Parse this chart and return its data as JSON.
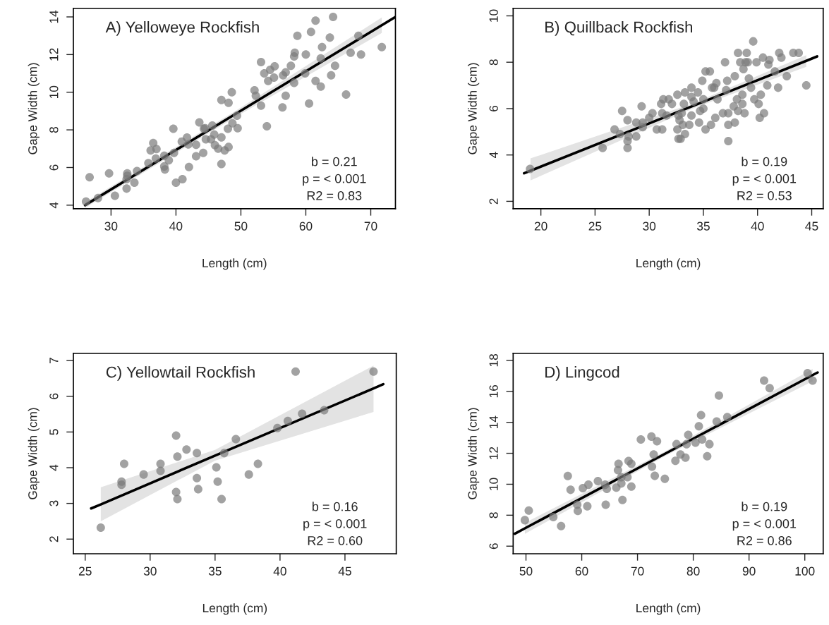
{
  "chart_data": [
    {
      "type": "scatter",
      "xlabel": "Length (cm)",
      "ylabel": "Gape Width (cm)",
      "annotations": [
        "A) Yelloweye Rockfish",
        "b = 0.21",
        "p = < 0.001",
        "R2 = 0.83"
      ],
      "xlim": [
        24.2,
        73.8
      ],
      "ylim": [
        3.81,
        14.45
      ],
      "xticks": [
        30,
        40,
        50,
        60,
        70
      ],
      "yticks": [
        4,
        6,
        8,
        10,
        12,
        14
      ],
      "grid": false,
      "marker": "circle",
      "series": [
        {
          "type": "scatter",
          "color": "#7a7a7a",
          "x": [
            26.15,
            26.7,
            28.0,
            29.7,
            30.6,
            32.5,
            32.5,
            32.4,
            32.4,
            33.6,
            34.0,
            35.75,
            36.1,
            36.5,
            37.0,
            36.9,
            38.2,
            38.3,
            38.2,
            38.9,
            39.7,
            39.6,
            40.0,
            41.0,
            40.9,
            41.7,
            42.0,
            41.9,
            43.1,
            43.6,
            43.1,
            44.3,
            44.2,
            44.6,
            44.5,
            45.6,
            45.9,
            45.4,
            46.0,
            46.5,
            47.0,
            47.0,
            47.5,
            47.0,
            48.1,
            48.1,
            48.6,
            48.0,
            48.7,
            49.4,
            49.5,
            52.1,
            52.3,
            53.1,
            53.1,
            53.6,
            54.0,
            54.2,
            54.5,
            55.1,
            55.2,
            56.4,
            56.5,
            56.9,
            56.9,
            57.7,
            58.2,
            58.2,
            58.3,
            58.7,
            60.0,
            59.9,
            60.5,
            60.8,
            61.5,
            61.5,
            62.3,
            62.3,
            62.5,
            63.7,
            63.9,
            64.2,
            64.5,
            66.2,
            66.9,
            68.1,
            68.5,
            71.7
          ],
          "values": [
            4.19,
            5.48,
            4.38,
            5.69,
            4.5,
            5.69,
            5.56,
            5.38,
            4.88,
            5.19,
            5.81,
            6.23,
            6.91,
            7.3,
            6.98,
            6.48,
            6.63,
            5.9,
            6.06,
            6.38,
            6.78,
            8.06,
            5.19,
            5.38,
            7.38,
            7.59,
            6.03,
            7.23,
            6.6,
            8.4,
            7.21,
            8.06,
            6.78,
            7.5,
            8.09,
            8.23,
            7.75,
            7.5,
            7.19,
            7.0,
            7.6,
            6.19,
            6.91,
            9.59,
            7.09,
            9.44,
            10.0,
            8.06,
            8.35,
            8.75,
            8.09,
            10.1,
            9.81,
            11.6,
            9.29,
            11.0,
            8.19,
            10.6,
            11.19,
            10.78,
            11.38,
            9.19,
            10.9,
            9.81,
            11.06,
            11.4,
            10.5,
            11.9,
            12.1,
            13.0,
            12.0,
            11.0,
            9.4,
            13.2,
            13.8,
            10.6,
            11.8,
            10.3,
            12.4,
            12.9,
            10.9,
            14.0,
            11.4,
            9.88,
            12.1,
            13.0,
            12.0,
            12.4
          ]
        },
        {
          "type": "line",
          "marker": "none",
          "color": "#000000",
          "x": [
            26.0,
            49.0,
            71.7,
            73.8
          ],
          "values": [
            4.0,
            8.81,
            13.56,
            14.0
          ],
          "lower": [
            3.85,
            8.65,
            13.15,
            null
          ],
          "upper": [
            4.15,
            8.97,
            13.97,
            null
          ]
        }
      ]
    },
    {
      "type": "scatter",
      "xlabel": "Length (cm)",
      "ylabel": "Gape Width (cm)",
      "annotations": [
        "B) Quillback Rockfish",
        "b = 0.19",
        "p = < 0.001",
        "R2 = 0.53"
      ],
      "xlim": [
        17.44,
        46.06
      ],
      "ylim": [
        1.68,
        10.32
      ],
      "xticks": [
        20,
        25,
        30,
        35,
        40,
        45
      ],
      "yticks": [
        2,
        4,
        6,
        8,
        10
      ],
      "grid": false,
      "marker": "circle",
      "series": [
        {
          "type": "scatter",
          "color": "#7a7a7a",
          "x": [
            19.0,
            25.7,
            26.8,
            27.5,
            27.3,
            28.0,
            28.0,
            28.0,
            28.1,
            28.8,
            28.8,
            29.3,
            29.4,
            29.4,
            30.0,
            30.3,
            30.7,
            31.1,
            31.2,
            31.2,
            31.3,
            31.6,
            31.8,
            32.1,
            32.6,
            32.6,
            32.7,
            32.7,
            32.9,
            32.8,
            33.0,
            33.2,
            33.3,
            33.3,
            33.1,
            33.7,
            33.9,
            33.9,
            33.9,
            34.1,
            34.5,
            34.6,
            34.7,
            34.9,
            35.0,
            35.0,
            35.2,
            35.2,
            35.6,
            35.8,
            35.7,
            36.0,
            36.1,
            36.2,
            36.3,
            36.8,
            37.0,
            37.1,
            37.2,
            37.3,
            37.3,
            37.3,
            37.8,
            37.9,
            37.9,
            38.1,
            38.2,
            38.2,
            38.4,
            38.6,
            38.6,
            38.7,
            38.8,
            38.9,
            39.0,
            39.1,
            39.2,
            39.4,
            39.6,
            39.7,
            39.9,
            40.1,
            40.2,
            40.3,
            40.6,
            40.5,
            40.9,
            41.0,
            41.1,
            41.6,
            41.9,
            42.0,
            42.2,
            42.7,
            43.3,
            43.8,
            44.5
          ],
          "values": [
            3.4,
            4.3,
            5.1,
            5.9,
            4.9,
            5.5,
            4.6,
            4.3,
            4.8,
            4.8,
            5.4,
            6.1,
            5.4,
            5.2,
            5.6,
            5.8,
            5.1,
            6.2,
            5.8,
            5.1,
            6.4,
            5.7,
            6.4,
            6.2,
            6.6,
            5.1,
            5.7,
            4.7,
            4.7,
            5.5,
            5.8,
            6.2,
            6.7,
            4.9,
            5.3,
            5.3,
            6.9,
            6.5,
            5.7,
            6.3,
            6.7,
            5.4,
            5.9,
            7.2,
            6.4,
            6.0,
            5.1,
            7.6,
            7.6,
            6.9,
            5.3,
            6.9,
            5.6,
            7.1,
            6.4,
            5.8,
            8.0,
            6.8,
            7.2,
            5.8,
            5.3,
            4.6,
            6.1,
            7.4,
            5.4,
            6.4,
            5.9,
            8.4,
            8.0,
            6.6,
            6.2,
            7.7,
            5.8,
            8.0,
            8.4,
            8.0,
            7.3,
            6.9,
            8.9,
            6.4,
            8.0,
            6.2,
            5.6,
            6.6,
            5.8,
            8.2,
            7.0,
            7.9,
            8.1,
            7.6,
            6.9,
            8.4,
            8.2,
            7.4,
            8.4,
            8.4,
            7.0
          ]
        },
        {
          "type": "line",
          "marker": "none",
          "color": "#000000",
          "x": [
            18.45,
            19.04,
            34.0,
            44.5,
            45.5
          ],
          "values": [
            3.21,
            3.32,
            6.11,
            8.06,
            8.25
          ],
          "lower": [
            null,
            2.9,
            6.0,
            7.8,
            null
          ],
          "upper": [
            null,
            3.85,
            6.22,
            8.3,
            null
          ]
        }
      ]
    },
    {
      "type": "scatter",
      "xlabel": "Length (cm)",
      "ylabel": "Gape Width (cm)",
      "annotations": [
        "C) Yellowtail Rockfish",
        "b = 0.16",
        "p = < 0.001",
        "R2 = 0.60"
      ],
      "xlim": [
        24.09,
        48.95
      ],
      "ylim": [
        1.59,
        7.2
      ],
      "xticks": [
        25,
        30,
        35,
        40,
        45
      ],
      "yticks": [
        2,
        3,
        4,
        5,
        6,
        7
      ],
      "grid": false,
      "marker": "circle",
      "series": [
        {
          "type": "scatter",
          "color": "#7a7a7a",
          "x": [
            41.2,
            47.2,
            43.4,
            41.7,
            40.6,
            39.8,
            36.6,
            35.7,
            33.6,
            32.8,
            32.0,
            32.1,
            28.0,
            29.5,
            30.8,
            30.8,
            27.8,
            27.8,
            33.6,
            35.1,
            35.2,
            33.7,
            32.0,
            32.1,
            35.5,
            38.3,
            37.6,
            26.2
          ],
          "values": [
            6.69,
            6.69,
            5.61,
            5.51,
            5.31,
            5.11,
            4.8,
            4.41,
            4.41,
            4.51,
            4.9,
            4.31,
            4.11,
            3.81,
            4.11,
            3.91,
            3.61,
            3.52,
            3.71,
            4.01,
            3.61,
            3.4,
            3.32,
            3.12,
            3.12,
            4.11,
            3.81,
            2.32
          ]
        },
        {
          "type": "line",
          "marker": "none",
          "color": "#000000",
          "x": [
            25.46,
            26.2,
            35.0,
            47.2,
            47.95
          ],
          "values": [
            2.86,
            2.97,
            4.34,
            6.22,
            6.34
          ],
          "lower": [
            null,
            2.5,
            4.2,
            5.56,
            null
          ],
          "upper": [
            null,
            3.45,
            4.5,
            6.86,
            null
          ]
        }
      ]
    },
    {
      "type": "scatter",
      "xlabel": "Length (cm)",
      "ylabel": "Gape Width (cm)",
      "annotations": [
        "D) Lingcod",
        "b = 0.19",
        "p = < 0.001",
        "R2 = 0.86"
      ],
      "xlim": [
        47.7,
        103.3
      ],
      "ylim": [
        5.51,
        18.45
      ],
      "xticks": [
        50,
        60,
        70,
        80,
        90,
        100
      ],
      "yticks": [
        6,
        8,
        10,
        12,
        14,
        16,
        18
      ],
      "grid": false,
      "marker": "circle",
      "series": [
        {
          "type": "scatter",
          "color": "#7a7a7a",
          "x": [
            100.5,
            101.4,
            92.7,
            93.7,
            84.6,
            81.4,
            86.1,
            84.2,
            81.0,
            79.1,
            81.6,
            82.9,
            80.4,
            78.8,
            77.0,
            82.5,
            77.7,
            78.6,
            76.8,
            70.6,
            72.5,
            73.5,
            72.9,
            72.6,
            73.1,
            74.9,
            68.4,
            68.9,
            66.6,
            66.5,
            67.1,
            68.2,
            67.1,
            66.2,
            68.9,
            64.2,
            64.5,
            62.9,
            61.2,
            60.2,
            57.5,
            58.0,
            49.8,
            50.5,
            54.9,
            56.3,
            59.3,
            59.2,
            61.0,
            64.3,
            67.3
          ],
          "values": [
            17.18,
            16.7,
            16.7,
            16.21,
            15.73,
            14.46,
            14.34,
            14.05,
            13.75,
            13.19,
            12.89,
            12.59,
            12.69,
            12.59,
            12.59,
            11.81,
            11.92,
            11.72,
            11.51,
            12.89,
            13.08,
            12.78,
            11.92,
            11.14,
            10.54,
            10.35,
            11.5,
            11.32,
            11.32,
            10.91,
            10.45,
            10.45,
            10.05,
            9.78,
            9.85,
            9.97,
            9.7,
            10.2,
            9.97,
            9.75,
            10.53,
            9.64,
            7.68,
            8.3,
            7.88,
            7.3,
            8.28,
            8.68,
            8.58,
            8.68,
            8.98
          ]
        },
        {
          "type": "line",
          "marker": "none",
          "color": "#000000",
          "x": [
            48.0,
            49.8,
            75.0,
            101.4,
            102.3
          ],
          "values": [
            6.8,
            7.15,
            11.98,
            17.05,
            17.22
          ],
          "lower": [
            null,
            6.8,
            11.83,
            16.65,
            null
          ],
          "upper": [
            null,
            7.5,
            12.13,
            17.45,
            null
          ]
        }
      ]
    }
  ]
}
